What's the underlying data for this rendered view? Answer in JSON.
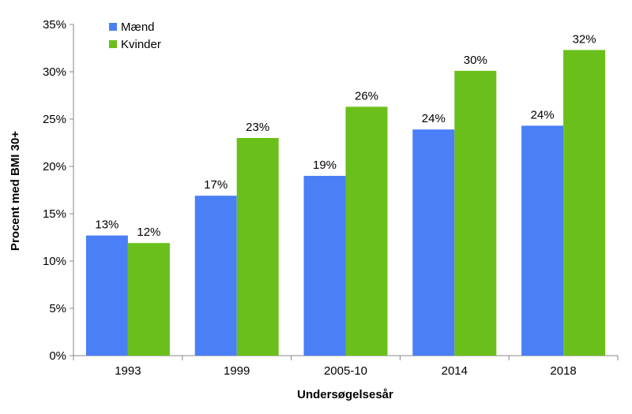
{
  "chart_data": {
    "type": "bar",
    "title": "",
    "xlabel": "Undersøgelsesår",
    "ylabel": "Procent med BMI 30+",
    "categories": [
      "1993",
      "1999",
      "2005-10",
      "2014",
      "2018"
    ],
    "ylim": [
      0,
      35
    ],
    "ytick_step": 5,
    "ytick_labels": [
      "0%",
      "5%",
      "10%",
      "15%",
      "20%",
      "25%",
      "30%",
      "35%"
    ],
    "grid": false,
    "legend_position": "top-left",
    "series": [
      {
        "name": "Mænd",
        "color": "#4a7ff5",
        "values": [
          12.7,
          16.9,
          19.0,
          23.9,
          24.3
        ],
        "labels": [
          "13%",
          "17%",
          "19%",
          "24%",
          "24%"
        ]
      },
      {
        "name": "Kvinder",
        "color": "#6abf1a",
        "values": [
          11.9,
          23.0,
          26.3,
          30.1,
          32.3
        ],
        "labels": [
          "12%",
          "23%",
          "26%",
          "30%",
          "32%"
        ]
      }
    ]
  }
}
